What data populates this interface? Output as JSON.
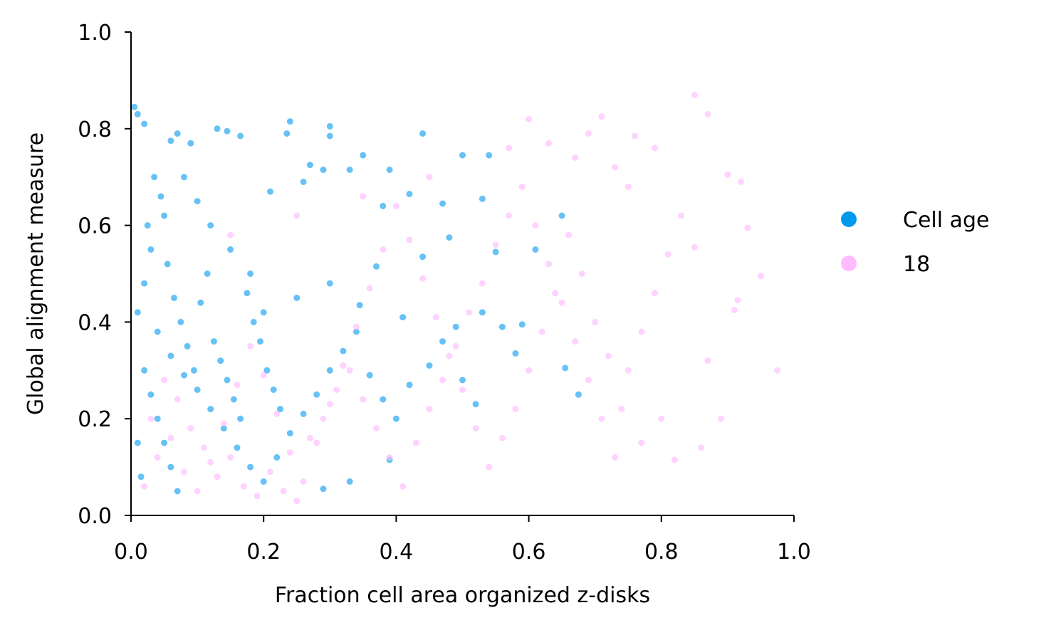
{
  "chart_data": {
    "type": "scatter",
    "title": "",
    "xlabel": "Fraction cell area organized z-disks",
    "ylabel": "Global alignment measure",
    "xlim": [
      0.0,
      1.0
    ],
    "ylim": [
      0.0,
      1.0
    ],
    "x_ticks": [
      "0.0",
      "0.2",
      "0.4",
      "0.6",
      "0.8",
      "1.0"
    ],
    "y_ticks": [
      "0.0",
      "0.2",
      "0.4",
      "0.6",
      "0.8",
      "1.0"
    ],
    "grid": false,
    "legend": {
      "placement": "right",
      "title": "Cell age"
    },
    "series": [
      {
        "name": "Cell age",
        "color": "#0099ee",
        "points": [
          [
            0.005,
            0.845
          ],
          [
            0.01,
            0.83
          ],
          [
            0.02,
            0.81
          ],
          [
            0.13,
            0.8
          ],
          [
            0.145,
            0.795
          ],
          [
            0.24,
            0.815
          ],
          [
            0.3,
            0.805
          ],
          [
            0.44,
            0.79
          ],
          [
            0.3,
            0.785
          ],
          [
            0.235,
            0.79
          ],
          [
            0.165,
            0.785
          ],
          [
            0.07,
            0.79
          ],
          [
            0.06,
            0.775
          ],
          [
            0.09,
            0.77
          ],
          [
            0.5,
            0.745
          ],
          [
            0.54,
            0.745
          ],
          [
            0.35,
            0.745
          ],
          [
            0.27,
            0.725
          ],
          [
            0.29,
            0.715
          ],
          [
            0.33,
            0.715
          ],
          [
            0.39,
            0.715
          ],
          [
            0.21,
            0.67
          ],
          [
            0.26,
            0.69
          ],
          [
            0.38,
            0.64
          ],
          [
            0.42,
            0.665
          ],
          [
            0.47,
            0.645
          ],
          [
            0.53,
            0.655
          ],
          [
            0.55,
            0.545
          ],
          [
            0.61,
            0.55
          ],
          [
            0.65,
            0.62
          ],
          [
            0.59,
            0.395
          ],
          [
            0.56,
            0.39
          ],
          [
            0.58,
            0.335
          ],
          [
            0.655,
            0.305
          ],
          [
            0.675,
            0.25
          ],
          [
            0.53,
            0.42
          ],
          [
            0.49,
            0.39
          ],
          [
            0.39,
            0.115
          ],
          [
            0.33,
            0.07
          ],
          [
            0.29,
            0.055
          ],
          [
            0.44,
            0.535
          ],
          [
            0.48,
            0.575
          ],
          [
            0.37,
            0.515
          ],
          [
            0.345,
            0.435
          ],
          [
            0.41,
            0.41
          ],
          [
            0.3,
            0.48
          ],
          [
            0.25,
            0.45
          ],
          [
            0.2,
            0.42
          ],
          [
            0.18,
            0.5
          ],
          [
            0.15,
            0.55
          ],
          [
            0.12,
            0.6
          ],
          [
            0.1,
            0.65
          ],
          [
            0.08,
            0.7
          ],
          [
            0.05,
            0.62
          ],
          [
            0.03,
            0.55
          ],
          [
            0.02,
            0.48
          ],
          [
            0.01,
            0.42
          ],
          [
            0.04,
            0.38
          ],
          [
            0.06,
            0.33
          ],
          [
            0.08,
            0.29
          ],
          [
            0.1,
            0.26
          ],
          [
            0.12,
            0.22
          ],
          [
            0.14,
            0.18
          ],
          [
            0.16,
            0.14
          ],
          [
            0.18,
            0.1
          ],
          [
            0.2,
            0.07
          ],
          [
            0.22,
            0.12
          ],
          [
            0.24,
            0.17
          ],
          [
            0.26,
            0.21
          ],
          [
            0.28,
            0.25
          ],
          [
            0.3,
            0.3
          ],
          [
            0.32,
            0.34
          ],
          [
            0.34,
            0.38
          ],
          [
            0.36,
            0.29
          ],
          [
            0.38,
            0.24
          ],
          [
            0.4,
            0.2
          ],
          [
            0.42,
            0.27
          ],
          [
            0.45,
            0.31
          ],
          [
            0.47,
            0.36
          ],
          [
            0.5,
            0.28
          ],
          [
            0.52,
            0.23
          ],
          [
            0.02,
            0.3
          ],
          [
            0.03,
            0.25
          ],
          [
            0.04,
            0.2
          ],
          [
            0.05,
            0.15
          ],
          [
            0.06,
            0.1
          ],
          [
            0.07,
            0.05
          ],
          [
            0.01,
            0.15
          ],
          [
            0.015,
            0.08
          ],
          [
            0.025,
            0.6
          ],
          [
            0.035,
            0.7
          ],
          [
            0.045,
            0.66
          ],
          [
            0.055,
            0.52
          ],
          [
            0.065,
            0.45
          ],
          [
            0.075,
            0.4
          ],
          [
            0.085,
            0.35
          ],
          [
            0.095,
            0.3
          ],
          [
            0.105,
            0.44
          ],
          [
            0.115,
            0.5
          ],
          [
            0.125,
            0.36
          ],
          [
            0.135,
            0.32
          ],
          [
            0.145,
            0.28
          ],
          [
            0.155,
            0.24
          ],
          [
            0.165,
            0.2
          ],
          [
            0.175,
            0.46
          ],
          [
            0.185,
            0.4
          ],
          [
            0.195,
            0.36
          ],
          [
            0.205,
            0.3
          ],
          [
            0.215,
            0.26
          ],
          [
            0.225,
            0.22
          ]
        ]
      },
      {
        "name": "18",
        "color": "#ffbbff",
        "points": [
          [
            0.85,
            0.87
          ],
          [
            0.87,
            0.83
          ],
          [
            0.71,
            0.825
          ],
          [
            0.6,
            0.82
          ],
          [
            0.69,
            0.79
          ],
          [
            0.76,
            0.785
          ],
          [
            0.63,
            0.77
          ],
          [
            0.79,
            0.76
          ],
          [
            0.9,
            0.705
          ],
          [
            0.92,
            0.69
          ],
          [
            0.93,
            0.595
          ],
          [
            0.95,
            0.495
          ],
          [
            0.975,
            0.3
          ],
          [
            0.915,
            0.445
          ],
          [
            0.91,
            0.425
          ],
          [
            0.89,
            0.2
          ],
          [
            0.87,
            0.32
          ],
          [
            0.85,
            0.555
          ],
          [
            0.86,
            0.14
          ],
          [
            0.82,
            0.115
          ],
          [
            0.8,
            0.2
          ],
          [
            0.77,
            0.15
          ],
          [
            0.74,
            0.22
          ],
          [
            0.72,
            0.33
          ],
          [
            0.7,
            0.4
          ],
          [
            0.68,
            0.5
          ],
          [
            0.66,
            0.58
          ],
          [
            0.64,
            0.46
          ],
          [
            0.62,
            0.38
          ],
          [
            0.6,
            0.3
          ],
          [
            0.58,
            0.22
          ],
          [
            0.56,
            0.16
          ],
          [
            0.54,
            0.1
          ],
          [
            0.52,
            0.18
          ],
          [
            0.5,
            0.26
          ],
          [
            0.48,
            0.33
          ],
          [
            0.46,
            0.41
          ],
          [
            0.44,
            0.49
          ],
          [
            0.42,
            0.57
          ],
          [
            0.4,
            0.64
          ],
          [
            0.38,
            0.55
          ],
          [
            0.36,
            0.47
          ],
          [
            0.34,
            0.39
          ],
          [
            0.32,
            0.31
          ],
          [
            0.3,
            0.23
          ],
          [
            0.28,
            0.15
          ],
          [
            0.26,
            0.07
          ],
          [
            0.24,
            0.13
          ],
          [
            0.22,
            0.21
          ],
          [
            0.2,
            0.29
          ],
          [
            0.18,
            0.35
          ],
          [
            0.16,
            0.27
          ],
          [
            0.14,
            0.19
          ],
          [
            0.12,
            0.11
          ],
          [
            0.1,
            0.05
          ],
          [
            0.08,
            0.09
          ],
          [
            0.06,
            0.16
          ],
          [
            0.04,
            0.12
          ],
          [
            0.02,
            0.06
          ],
          [
            0.03,
            0.2
          ],
          [
            0.05,
            0.28
          ],
          [
            0.07,
            0.24
          ],
          [
            0.09,
            0.18
          ],
          [
            0.11,
            0.14
          ],
          [
            0.13,
            0.08
          ],
          [
            0.15,
            0.12
          ],
          [
            0.17,
            0.06
          ],
          [
            0.19,
            0.04
          ],
          [
            0.21,
            0.09
          ],
          [
            0.23,
            0.05
          ],
          [
            0.25,
            0.03
          ],
          [
            0.27,
            0.16
          ],
          [
            0.29,
            0.2
          ],
          [
            0.31,
            0.26
          ],
          [
            0.33,
            0.3
          ],
          [
            0.35,
            0.24
          ],
          [
            0.37,
            0.18
          ],
          [
            0.39,
            0.12
          ],
          [
            0.41,
            0.06
          ],
          [
            0.43,
            0.15
          ],
          [
            0.45,
            0.22
          ],
          [
            0.47,
            0.28
          ],
          [
            0.49,
            0.35
          ],
          [
            0.51,
            0.42
          ],
          [
            0.53,
            0.48
          ],
          [
            0.55,
            0.56
          ],
          [
            0.57,
            0.62
          ],
          [
            0.59,
            0.68
          ],
          [
            0.61,
            0.6
          ],
          [
            0.63,
            0.52
          ],
          [
            0.65,
            0.44
          ],
          [
            0.67,
            0.36
          ],
          [
            0.69,
            0.28
          ],
          [
            0.71,
            0.2
          ],
          [
            0.73,
            0.12
          ],
          [
            0.75,
            0.3
          ],
          [
            0.77,
            0.38
          ],
          [
            0.79,
            0.46
          ],
          [
            0.81,
            0.54
          ],
          [
            0.83,
            0.62
          ],
          [
            0.75,
            0.68
          ],
          [
            0.73,
            0.72
          ],
          [
            0.67,
            0.74
          ],
          [
            0.57,
            0.76
          ],
          [
            0.45,
            0.7
          ],
          [
            0.35,
            0.66
          ],
          [
            0.25,
            0.62
          ],
          [
            0.15,
            0.58
          ]
        ]
      }
    ]
  }
}
